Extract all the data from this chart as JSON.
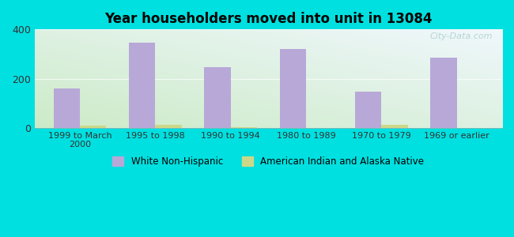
{
  "title": "Year householders moved into unit in 13084",
  "categories": [
    "1999 to March\n2000",
    "1995 to 1998",
    "1990 to 1994",
    "1980 to 1989",
    "1970 to 1979",
    "1969 or earlier"
  ],
  "white_non_hispanic": [
    160,
    348,
    248,
    322,
    148,
    285
  ],
  "american_indian": [
    10,
    13,
    4,
    0,
    12,
    0
  ],
  "bar_color_white": "#b8a8d8",
  "bar_color_indian": "#ccd888",
  "ylim": [
    0,
    400
  ],
  "yticks": [
    0,
    200,
    400
  ],
  "background_outer": "#00e0e0",
  "watermark": "City-Data.com",
  "legend_white": "White Non-Hispanic",
  "legend_indian": "American Indian and Alaska Native",
  "bar_width": 0.35
}
